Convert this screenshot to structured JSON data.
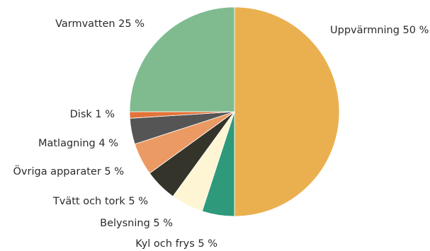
{
  "chart_data": {
    "type": "pie",
    "start_angle_deg": 0,
    "direction": "clockwise",
    "slices": [
      {
        "label": "Uppvärmning 50 %",
        "value": 50,
        "color": "#EAB050"
      },
      {
        "label": "Kyl och frys 5 %",
        "value": 5,
        "color": "#2E9A7B"
      },
      {
        "label": "Belysning 5 %",
        "value": 5,
        "color": "#FDF5D4"
      },
      {
        "label": "Tvätt och tork 5 %",
        "value": 5,
        "color": "#35342A"
      },
      {
        "label": "Övriga apparater 5 %",
        "value": 5,
        "color": "#EB9A64"
      },
      {
        "label": "Matlagning 4 %",
        "value": 4,
        "color": "#555555"
      },
      {
        "label": "Disk 1 %",
        "value": 1,
        "color": "#E2733A"
      },
      {
        "label": "Varmvatten 25 %",
        "value": 25,
        "color": "#7FBB8F"
      }
    ]
  }
}
